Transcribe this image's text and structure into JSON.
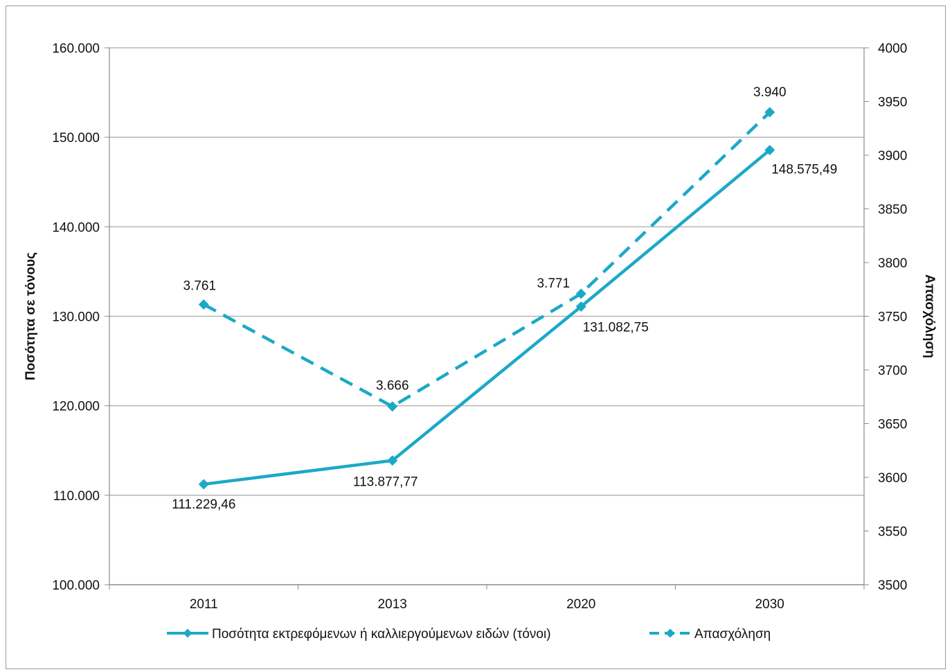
{
  "chart_data": {
    "type": "line",
    "categories": [
      "2011",
      "2013",
      "2020",
      "2030"
    ],
    "ylabel": "Ποσότητα σε τόνους",
    "y2label": "Απασχόληση",
    "ylim": [
      100000,
      160000
    ],
    "y2lim": [
      3500,
      4000
    ],
    "yticks": [
      "100.000",
      "110.000",
      "120.000",
      "130.000",
      "140.000",
      "150.000",
      "160.000"
    ],
    "y2ticks": [
      "3500",
      "3550",
      "3600",
      "3650",
      "3700",
      "3750",
      "3800",
      "3850",
      "3900",
      "3950",
      "4000"
    ],
    "grid": true,
    "legend_position": "bottom",
    "series": [
      {
        "name": "Ποσότητα εκτρεφόμενων ή καλλιεργούμενων ειδών (τόνοι)",
        "axis": "left",
        "style": "solid",
        "color": "#1BA9C6",
        "values": [
          111229.46,
          113877.77,
          131082.75,
          148575.49
        ],
        "labels": [
          "111.229,46",
          "113.877,77",
          "131.082,75",
          "148.575,49"
        ]
      },
      {
        "name": "Απασχόληση",
        "axis": "right",
        "style": "dashed",
        "color": "#1BA9C6",
        "values": [
          3761,
          3666,
          3771,
          3940
        ],
        "labels": [
          "3.761",
          "3.666",
          "3.771",
          "3.940"
        ]
      }
    ]
  }
}
